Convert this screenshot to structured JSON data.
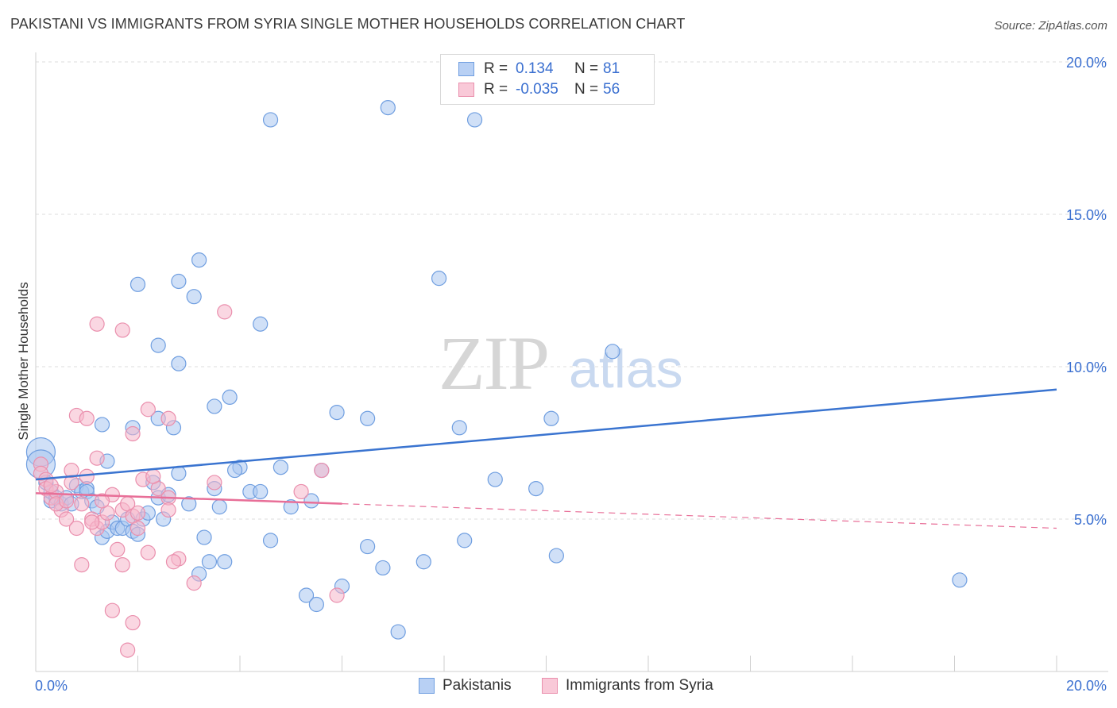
{
  "title": "PAKISTANI VS IMMIGRANTS FROM SYRIA SINGLE MOTHER HOUSEHOLDS CORRELATION CHART",
  "source": "Source: ZipAtlas.com",
  "watermark": {
    "zip": "ZIP",
    "atlas": "atlas"
  },
  "colors": {
    "blue_fill": "#a9c6f0",
    "blue_stroke": "#6f9ee0",
    "blue_line": "#3a74d0",
    "pink_fill": "#f5b7cb",
    "pink_stroke": "#ea8fad",
    "pink_line": "#e86f98",
    "axis_text": "#3a6fd0",
    "grid": "#dedede"
  },
  "legend": {
    "rows": [
      {
        "label": "R =",
        "r_value": "0.134",
        "n_label": "N =",
        "n_value": "81"
      },
      {
        "label": "R =",
        "r_value": "-0.035",
        "n_label": "N =",
        "n_value": "56"
      }
    ]
  },
  "bottom_legend": [
    {
      "label": "Pakistanis"
    },
    {
      "label": "Immigrants from Syria"
    }
  ],
  "chart_data": {
    "type": "scatter",
    "title": "PAKISTANI VS IMMIGRANTS FROM SYRIA SINGLE MOTHER HOUSEHOLDS CORRELATION CHART",
    "xlabel": "",
    "ylabel": "Single Mother Households",
    "xlim": [
      0,
      20
    ],
    "ylim": [
      0,
      20
    ],
    "x_tick_labels": [
      "0.0%",
      "20.0%"
    ],
    "y_tick_labels": [
      "5.0%",
      "10.0%",
      "15.0%",
      "20.0%"
    ],
    "y_ticks": [
      5,
      10,
      15,
      20
    ],
    "grid": true,
    "series": [
      {
        "name": "Pakistanis",
        "r": 0.134,
        "n": 81,
        "trend": {
          "x": [
            0,
            20
          ],
          "y": [
            6.3,
            9.25
          ],
          "style": "solid"
        },
        "points": [
          [
            0.1,
            7.2
          ],
          [
            0.1,
            6.8
          ],
          [
            0.2,
            6.2
          ],
          [
            0.3,
            5.6
          ],
          [
            0.3,
            5.9
          ],
          [
            0.4,
            5.7
          ],
          [
            0.5,
            5.5
          ],
          [
            0.6,
            5.7
          ],
          [
            0.7,
            5.5
          ],
          [
            0.8,
            6.1
          ],
          [
            0.9,
            5.9
          ],
          [
            1.0,
            6.0
          ],
          [
            1.0,
            5.9
          ],
          [
            1.1,
            5.6
          ],
          [
            1.2,
            5.4
          ],
          [
            1.3,
            4.4
          ],
          [
            1.4,
            4.6
          ],
          [
            1.5,
            4.9
          ],
          [
            1.6,
            4.7
          ],
          [
            1.7,
            4.7
          ],
          [
            1.8,
            5.0
          ],
          [
            1.9,
            4.6
          ],
          [
            2.0,
            4.5
          ],
          [
            2.1,
            5.0
          ],
          [
            2.2,
            5.2
          ],
          [
            2.3,
            6.2
          ],
          [
            2.4,
            5.7
          ],
          [
            2.5,
            5.0
          ],
          [
            2.6,
            5.8
          ],
          [
            2.8,
            6.5
          ],
          [
            3.0,
            5.5
          ],
          [
            3.2,
            3.2
          ],
          [
            3.3,
            4.4
          ],
          [
            3.4,
            3.6
          ],
          [
            3.5,
            6.0
          ],
          [
            3.6,
            5.4
          ],
          [
            3.7,
            3.6
          ],
          [
            4.0,
            6.7
          ],
          [
            4.2,
            5.9
          ],
          [
            4.4,
            5.9
          ],
          [
            4.6,
            4.3
          ],
          [
            4.8,
            6.7
          ],
          [
            5.0,
            5.4
          ],
          [
            5.3,
            2.5
          ],
          [
            5.4,
            5.6
          ],
          [
            5.5,
            2.2
          ],
          [
            5.6,
            6.6
          ],
          [
            5.9,
            8.5
          ],
          [
            6.0,
            2.8
          ],
          [
            6.5,
            8.3
          ],
          [
            6.5,
            4.1
          ],
          [
            6.8,
            3.4
          ],
          [
            7.1,
            1.3
          ],
          [
            7.6,
            3.6
          ],
          [
            7.9,
            12.9
          ],
          [
            8.4,
            4.3
          ],
          [
            8.3,
            8.0
          ],
          [
            9.0,
            6.3
          ],
          [
            9.8,
            6.0
          ],
          [
            10.1,
            8.3
          ],
          [
            10.2,
            3.8
          ],
          [
            11.3,
            10.5
          ],
          [
            18.1,
            3.0
          ],
          [
            4.6,
            18.1
          ],
          [
            6.9,
            18.5
          ],
          [
            8.6,
            18.1
          ],
          [
            2.0,
            12.7
          ],
          [
            2.8,
            12.8
          ],
          [
            3.2,
            13.5
          ],
          [
            3.1,
            12.3
          ],
          [
            2.4,
            10.7
          ],
          [
            2.8,
            10.1
          ],
          [
            4.4,
            11.4
          ],
          [
            3.5,
            8.7
          ],
          [
            3.8,
            9.0
          ],
          [
            2.4,
            8.3
          ],
          [
            1.3,
            8.1
          ],
          [
            1.9,
            8.0
          ],
          [
            2.7,
            8.0
          ],
          [
            1.4,
            6.9
          ],
          [
            3.9,
            6.6
          ]
        ]
      },
      {
        "name": "Immigrants from Syria",
        "r": -0.035,
        "n": 56,
        "trend": {
          "x": [
            0,
            20
          ],
          "y": [
            5.85,
            4.7
          ],
          "style": "solid-then-dashed",
          "solid_until_x": 6.0
        },
        "points": [
          [
            0.1,
            6.8
          ],
          [
            0.1,
            6.5
          ],
          [
            0.2,
            6.3
          ],
          [
            0.2,
            6.0
          ],
          [
            0.3,
            5.7
          ],
          [
            0.4,
            5.9
          ],
          [
            0.5,
            5.3
          ],
          [
            0.6,
            5.0
          ],
          [
            0.7,
            6.2
          ],
          [
            0.8,
            4.7
          ],
          [
            0.9,
            5.5
          ],
          [
            1.0,
            6.4
          ],
          [
            1.1,
            5.0
          ],
          [
            1.2,
            4.7
          ],
          [
            1.3,
            4.9
          ],
          [
            1.4,
            5.2
          ],
          [
            1.5,
            5.8
          ],
          [
            1.6,
            4.0
          ],
          [
            1.7,
            5.3
          ],
          [
            1.8,
            5.5
          ],
          [
            1.9,
            5.1
          ],
          [
            2.0,
            5.2
          ],
          [
            2.2,
            3.9
          ],
          [
            2.4,
            6.0
          ],
          [
            2.6,
            5.7
          ],
          [
            2.8,
            3.7
          ],
          [
            3.1,
            2.9
          ],
          [
            3.7,
            11.8
          ],
          [
            1.2,
            11.4
          ],
          [
            1.7,
            11.2
          ],
          [
            0.8,
            8.4
          ],
          [
            1.0,
            8.3
          ],
          [
            2.2,
            8.6
          ],
          [
            2.6,
            8.3
          ],
          [
            1.9,
            7.8
          ],
          [
            1.2,
            7.0
          ],
          [
            0.7,
            6.6
          ],
          [
            0.3,
            6.1
          ],
          [
            0.4,
            5.5
          ],
          [
            1.5,
            2.0
          ],
          [
            1.9,
            1.6
          ],
          [
            1.8,
            0.7
          ],
          [
            0.9,
            3.5
          ],
          [
            1.7,
            3.5
          ],
          [
            2.7,
            3.6
          ],
          [
            2.1,
            6.3
          ],
          [
            2.3,
            6.4
          ],
          [
            2.6,
            5.3
          ],
          [
            3.5,
            6.2
          ],
          [
            5.2,
            5.9
          ],
          [
            5.6,
            6.6
          ],
          [
            5.9,
            2.5
          ],
          [
            1.1,
            4.9
          ],
          [
            2.0,
            4.7
          ],
          [
            1.3,
            5.6
          ],
          [
            0.6,
            5.6
          ]
        ]
      }
    ]
  }
}
